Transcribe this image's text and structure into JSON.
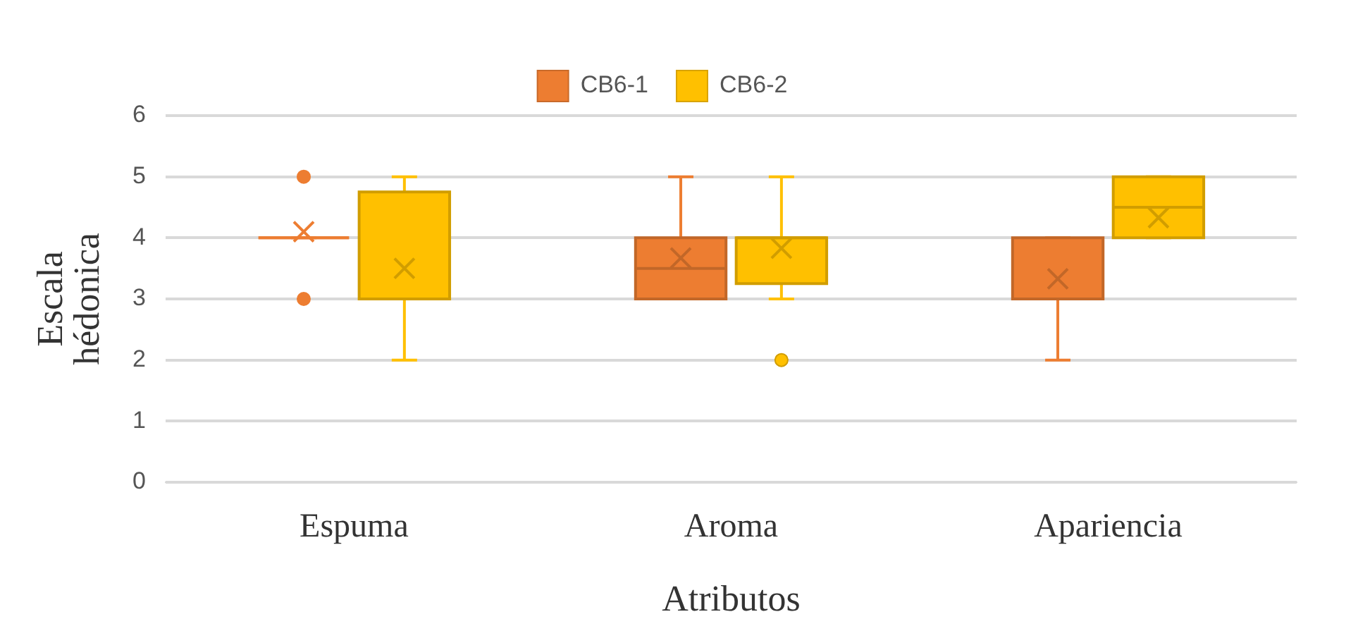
{
  "chart_data": {
    "type": "box",
    "xlabel": "Atributos",
    "ylabel": "Escala hédonica",
    "categories": [
      "Espuma",
      "Aroma",
      "Apariencia"
    ],
    "ylim": [
      0,
      6
    ],
    "yticks": [
      0,
      1,
      2,
      3,
      4,
      5,
      6
    ],
    "grid": "y",
    "legend": "top",
    "series": [
      {
        "name": "CB6-1",
        "color": "#ed7d31",
        "boxes": [
          {
            "low": 4,
            "q1": 4,
            "median": 4,
            "q3": 4,
            "high": 4,
            "mean": 4.1,
            "outliers": [
              5,
              3
            ]
          },
          {
            "low": 3,
            "q1": 3,
            "median": 3.5,
            "q3": 4,
            "high": 5,
            "mean": 3.67
          },
          {
            "low": 2,
            "q1": 3,
            "median": 3,
            "q3": 4,
            "high": 4,
            "mean": 3.33
          }
        ]
      },
      {
        "name": "CB6-2",
        "color": "#ffc000",
        "boxes": [
          {
            "low": 2,
            "q1": 3,
            "median": 3,
            "q3": 4.75,
            "high": 5,
            "mean": 3.5
          },
          {
            "low": 3,
            "q1": 3.25,
            "median": 4,
            "q3": 4,
            "high": 5,
            "mean": 3.83,
            "outliers": [
              2
            ]
          },
          {
            "low": 4,
            "q1": 4,
            "median": 4.5,
            "q3": 5,
            "high": 5,
            "mean": 4.33
          }
        ]
      }
    ]
  }
}
